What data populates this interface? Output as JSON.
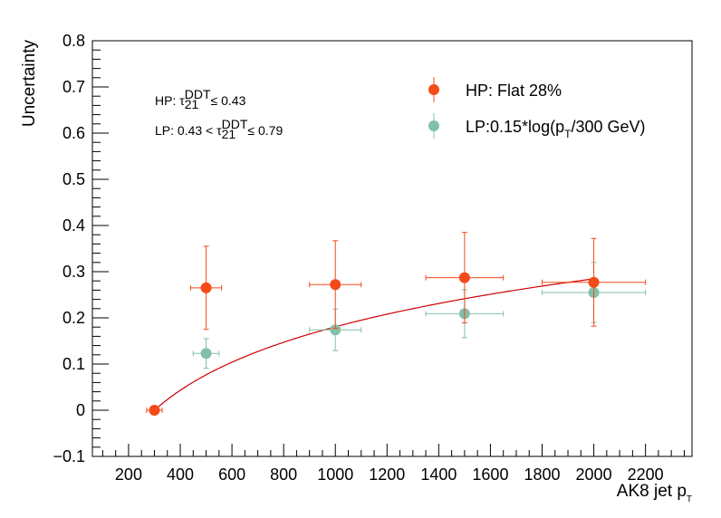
{
  "chart_data": {
    "type": "scatter",
    "xlabel": "AK8 jet p",
    "xlabel_sub": "T",
    "ylabel": "Uncertainty",
    "xlim": [
      60,
      2380
    ],
    "ylim": [
      -0.1,
      0.8
    ],
    "x_ticks": [
      200,
      400,
      600,
      800,
      1000,
      1200,
      1400,
      1600,
      1800,
      2000,
      2200
    ],
    "y_ticks": [
      -0.1,
      0,
      0.1,
      0.2,
      0.3,
      0.4,
      0.5,
      0.6,
      0.7,
      0.8
    ],
    "y_tick_labels": [
      "−0.1",
      "0",
      "0.1",
      "0.2",
      "0.3",
      "0.4",
      "0.5",
      "0.6",
      "0.7",
      "0.8"
    ],
    "grid": false,
    "legend_position": "top-right",
    "series": [
      {
        "name": "HP: Flat 28%",
        "color": "#f54a1a",
        "points": [
          {
            "x": 300,
            "y": 0.0,
            "xerr": 30,
            "yerr": 0.0
          },
          {
            "x": 500,
            "y": 0.265,
            "xerr": 60,
            "yerr": 0.09
          },
          {
            "x": 1000,
            "y": 0.272,
            "xerr": 100,
            "yerr": 0.095
          },
          {
            "x": 1500,
            "y": 0.287,
            "xerr": 150,
            "yerr": 0.098
          },
          {
            "x": 2000,
            "y": 0.277,
            "xerr": 200,
            "yerr": 0.095
          }
        ]
      },
      {
        "name": "LP:0.15*log(p",
        "name_sub": "T",
        "name_rest": "/300 GeV)",
        "color": "#82c0a8",
        "points": [
          {
            "x": 500,
            "y": 0.123,
            "xerr": 50,
            "yerr": 0.032
          },
          {
            "x": 1000,
            "y": 0.174,
            "xerr": 100,
            "yerr": 0.045
          },
          {
            "x": 1500,
            "y": 0.209,
            "xerr": 150,
            "yerr": 0.052
          },
          {
            "x": 2000,
            "y": 0.255,
            "xerr": 200,
            "yerr": 0.065
          }
        ]
      }
    ],
    "curve": {
      "formula": "0.15*log(x/300)",
      "color": "#cc0000",
      "x_start": 300,
      "x_end": 2000
    },
    "annotations": [
      {
        "prefix": "HP: τ",
        "sub": "21",
        "sup": "DDT",
        "suffix": " ≤ 0.43"
      },
      {
        "prefix": "LP: 0.43 < τ",
        "sub": "21",
        "sup": "DDT",
        "suffix": " ≤ 0.79"
      }
    ]
  }
}
